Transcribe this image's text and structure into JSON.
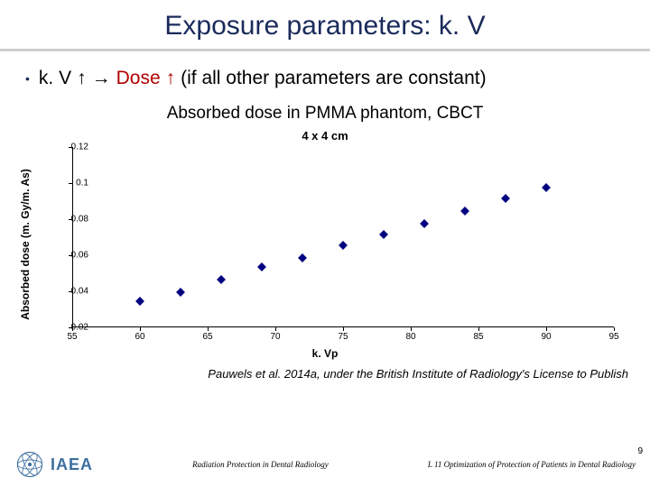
{
  "title": "Exposure parameters: k. V",
  "bullet": {
    "pre": "k. V",
    "arrow_up1": "↑",
    "arrow_right": "→",
    "mid": "Dose",
    "arrow_up2": "↑",
    "post": "(if all other parameters are constant)"
  },
  "chart": {
    "type": "scatter",
    "title": "Absorbed dose in PMMA phantom, CBCT",
    "subtitle": "4 x 4 cm",
    "ylabel": "Absorbed dose (m. Gy/m. As)",
    "xlabel": "k. Vp",
    "xlim": [
      55,
      95
    ],
    "ylim": [
      0.02,
      0.12
    ],
    "xticks": [
      55,
      60,
      65,
      70,
      75,
      80,
      85,
      90,
      95
    ],
    "yticks": [
      0.02,
      0.04,
      0.06,
      0.08,
      0.1,
      0.12
    ],
    "marker_color": "#000080",
    "marker_shape": "diamond",
    "marker_size": 7,
    "background_color": "#ffffff",
    "axis_color": "#000000",
    "title_fontsize": 19,
    "label_fontsize": 12,
    "points": [
      {
        "x": 60,
        "y": 0.038
      },
      {
        "x": 63,
        "y": 0.043
      },
      {
        "x": 66,
        "y": 0.05
      },
      {
        "x": 69,
        "y": 0.057
      },
      {
        "x": 72,
        "y": 0.062
      },
      {
        "x": 75,
        "y": 0.069
      },
      {
        "x": 78,
        "y": 0.075
      },
      {
        "x": 81,
        "y": 0.081
      },
      {
        "x": 84,
        "y": 0.088
      },
      {
        "x": 87,
        "y": 0.095
      },
      {
        "x": 90,
        "y": 0.101
      }
    ]
  },
  "citation": "Pauwels et al. 2014a, under the British Institute of Radiology's License to Publish",
  "footer": {
    "org": "IAEA",
    "logo_color": "#3d6fa0",
    "left_text": "Radiation Protection in Dental Radiology",
    "right_text": "L 11 Optimization of Protection of Patients in Dental Radiology",
    "slide_number": "9"
  }
}
